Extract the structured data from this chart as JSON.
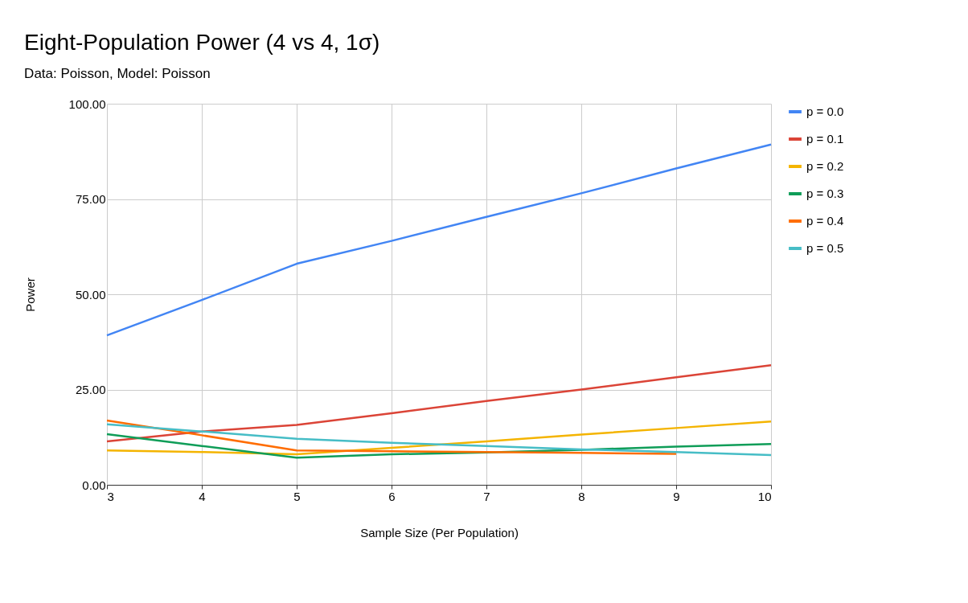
{
  "chart_data": {
    "type": "line",
    "title": "Eight-Population Power (4 vs 4, 1σ)",
    "subtitle": "Data: Poisson, Model: Poisson",
    "xlabel": "Sample Size (Per Population)",
    "ylabel": "Power",
    "x": [
      3,
      4,
      5,
      6,
      7,
      8,
      9,
      10
    ],
    "xlim": [
      3,
      10
    ],
    "xticks": [
      3,
      4,
      5,
      6,
      7,
      8,
      9,
      10
    ],
    "ylim": [
      0,
      100
    ],
    "yticks": [
      {
        "value": 0,
        "label": "0.00"
      },
      {
        "value": 25,
        "label": "25.00"
      },
      {
        "value": 50,
        "label": "50.00"
      },
      {
        "value": 75,
        "label": "75.00"
      },
      {
        "value": 100,
        "label": "100.00"
      }
    ],
    "grid": true,
    "legend": "right",
    "marker": "none",
    "line_style": "solid",
    "series": [
      {
        "name": "p = 0.0",
        "color": "#4285f4",
        "values": [
          39.2,
          48.5,
          58,
          64,
          70.3,
          76.5,
          83,
          89.3
        ]
      },
      {
        "name": "p = 0.1",
        "color": "#db4437",
        "values": [
          11.4,
          14,
          15.7,
          18.8,
          22,
          25,
          28.2,
          31.4
        ]
      },
      {
        "name": "p = 0.2",
        "color": "#f4b400",
        "values": [
          9,
          8.6,
          8,
          9.7,
          11.4,
          13.2,
          14.9,
          16.6
        ]
      },
      {
        "name": "p = 0.3",
        "color": "#0f9d58",
        "values": [
          13.3,
          10.2,
          7.1,
          8,
          8.5,
          9.2,
          10,
          10.7
        ]
      },
      {
        "name": "p = 0.4",
        "color": "#ff6d01",
        "values": [
          16.9,
          13,
          9,
          8.8,
          8.6,
          8.4,
          8.1,
          null
        ]
      },
      {
        "name": "p = 0.5",
        "color": "#46bdc6",
        "values": [
          15.9,
          14,
          12.1,
          11,
          10.2,
          9.3,
          8.6,
          7.8
        ]
      }
    ]
  }
}
